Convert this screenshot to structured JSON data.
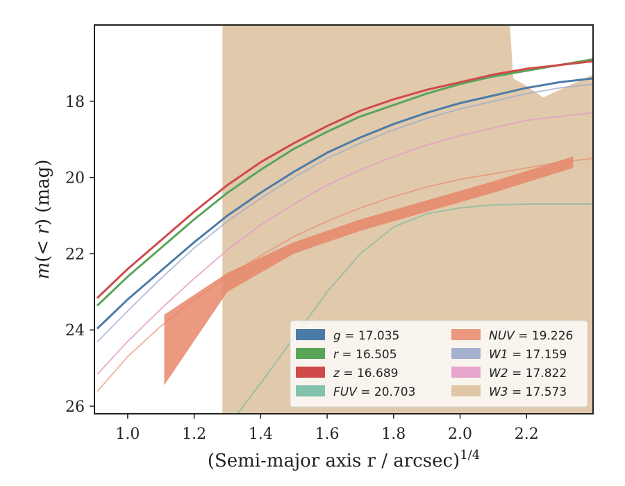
{
  "chart_data": {
    "type": "line",
    "xlabel": "(Semi-major axis r / arcsec)",
    "xlabel_exponent": "1/4",
    "ylabel_m": "m",
    "ylabel_mid": "(< ",
    "ylabel_r": "r",
    "ylabel_end": ") (mag)",
    "xlim": [
      0.9,
      2.4
    ],
    "ylim": [
      26.2,
      16.0
    ],
    "y_inverted": true,
    "xticks": [
      1.0,
      1.2,
      1.4,
      1.6,
      1.8,
      2.0,
      2.2
    ],
    "xtick_labels": [
      "1.0",
      "1.2",
      "1.4",
      "1.6",
      "1.8",
      "2.0",
      "2.2"
    ],
    "yticks": [
      18,
      20,
      22,
      24,
      26
    ],
    "ytick_labels": [
      "18",
      "20",
      "22",
      "24",
      "26"
    ],
    "grid": false,
    "legend_position": "lower-right",
    "legend_columns": 2,
    "series": [
      {
        "name": "g",
        "value": "17.035",
        "color": "#4c7ba8",
        "opacity": 1.0,
        "width": 3,
        "x": [
          0.91,
          1.0,
          1.1,
          1.2,
          1.3,
          1.4,
          1.5,
          1.6,
          1.7,
          1.8,
          1.9,
          2.0,
          2.1,
          2.2,
          2.3,
          2.4
        ],
        "y": [
          23.95,
          23.2,
          22.45,
          21.7,
          21.0,
          20.4,
          19.85,
          19.35,
          18.95,
          18.6,
          18.3,
          18.05,
          17.85,
          17.65,
          17.5,
          17.4
        ]
      },
      {
        "name": "r",
        "value": "16.505",
        "color": "#5aa55a",
        "opacity": 1.0,
        "width": 3,
        "x": [
          0.91,
          1.0,
          1.1,
          1.2,
          1.3,
          1.4,
          1.5,
          1.6,
          1.7,
          1.8,
          1.9,
          2.0,
          2.1,
          2.2,
          2.3,
          2.4
        ],
        "y": [
          23.35,
          22.6,
          21.85,
          21.1,
          20.4,
          19.8,
          19.25,
          18.8,
          18.4,
          18.1,
          17.8,
          17.55,
          17.35,
          17.2,
          17.05,
          16.9
        ]
      },
      {
        "name": "z",
        "value": "16.689",
        "color": "#d04a4a",
        "opacity": 1.0,
        "width": 3,
        "x": [
          0.91,
          1.0,
          1.1,
          1.2,
          1.3,
          1.4,
          1.5,
          1.6,
          1.7,
          1.8,
          1.9,
          2.0,
          2.1,
          2.2,
          2.3,
          2.4
        ],
        "y": [
          23.15,
          22.4,
          21.65,
          20.9,
          20.2,
          19.6,
          19.1,
          18.65,
          18.25,
          17.95,
          17.7,
          17.5,
          17.3,
          17.15,
          17.05,
          16.95
        ]
      },
      {
        "name": "FUV",
        "value": "20.703",
        "color": "#6bb8a0",
        "opacity": 0.6,
        "width": 2,
        "x": [
          1.33,
          1.4,
          1.5,
          1.6,
          1.7,
          1.8,
          1.9,
          2.0,
          2.1,
          2.2,
          2.3,
          2.4
        ],
        "y": [
          26.2,
          25.4,
          24.2,
          23.0,
          22.0,
          21.3,
          20.95,
          20.8,
          20.72,
          20.7,
          20.7,
          20.7
        ]
      },
      {
        "name": "NUV",
        "value": "19.226",
        "color": "#e8876a",
        "opacity": 0.6,
        "width": 2,
        "x": [
          0.91,
          1.0,
          1.1,
          1.2,
          1.3,
          1.4,
          1.5,
          1.6,
          1.7,
          1.8,
          1.9,
          2.0,
          2.1,
          2.2,
          2.3,
          2.4
        ],
        "y": [
          25.6,
          24.7,
          23.9,
          23.2,
          22.6,
          22.05,
          21.55,
          21.15,
          20.8,
          20.5,
          20.25,
          20.05,
          19.9,
          19.75,
          19.6,
          19.5
        ]
      },
      {
        "name": "W1",
        "value": "17.159",
        "color": "#9aaacb",
        "opacity": 0.7,
        "width": 2,
        "x": [
          0.91,
          1.0,
          1.1,
          1.2,
          1.3,
          1.4,
          1.5,
          1.6,
          1.7,
          1.8,
          1.9,
          2.0,
          2.1,
          2.2,
          2.3,
          2.4
        ],
        "y": [
          24.3,
          23.5,
          22.65,
          21.85,
          21.15,
          20.55,
          20.0,
          19.5,
          19.1,
          18.75,
          18.45,
          18.2,
          18.0,
          17.8,
          17.65,
          17.55
        ]
      },
      {
        "name": "W2",
        "value": "17.822",
        "color": "#e39cc8",
        "opacity": 0.8,
        "width": 2,
        "x": [
          0.91,
          1.0,
          1.1,
          1.2,
          1.3,
          1.4,
          1.5,
          1.6,
          1.7,
          1.8,
          1.9,
          2.0,
          2.1,
          2.2,
          2.3,
          2.4
        ],
        "y": [
          25.15,
          24.3,
          23.45,
          22.65,
          21.9,
          21.25,
          20.7,
          20.2,
          19.8,
          19.45,
          19.15,
          18.9,
          18.7,
          18.5,
          18.4,
          18.3
        ]
      }
    ],
    "bands": [
      {
        "name": "W3",
        "value": "17.573",
        "color": "#dcc19e",
        "opacity": 0.85,
        "x": [
          1.285,
          1.285,
          1.29,
          2.15,
          2.15,
          2.16,
          2.2,
          2.25,
          2.3,
          2.35,
          2.4,
          2.4,
          2.3,
          2.2,
          2.17,
          2.16,
          1.29
        ],
        "y": [
          26.2,
          16.0,
          16.0,
          16.0,
          16.0,
          17.4,
          17.6,
          17.9,
          17.7,
          17.5,
          17.3,
          26.2,
          26.2,
          26.2,
          26.2,
          26.2,
          26.2
        ]
      },
      {
        "name": "NUV",
        "value": "19.226",
        "color": "#e8876a",
        "opacity": 0.85,
        "x": [
          1.11,
          1.3,
          1.5,
          1.7,
          1.9,
          2.1,
          2.34,
          2.34,
          2.1,
          1.9,
          1.7,
          1.5,
          1.3,
          1.11
        ],
        "y": [
          23.6,
          22.5,
          21.7,
          21.1,
          20.6,
          20.1,
          19.45,
          19.75,
          20.4,
          20.9,
          21.4,
          22.0,
          23.0,
          25.45
        ]
      }
    ],
    "legend": [
      {
        "label": "g",
        "value": "17.035",
        "italic": true,
        "color": "#4c7ba8",
        "opacity": 1.0
      },
      {
        "label": "r",
        "value": "16.505",
        "italic": true,
        "color": "#5aa55a",
        "opacity": 1.0
      },
      {
        "label": "z",
        "value": "16.689",
        "italic": true,
        "color": "#d04a4a",
        "opacity": 1.0
      },
      {
        "label": "FUV",
        "value": "20.703",
        "italic": true,
        "color": "#6bb8a0",
        "opacity": 0.85
      },
      {
        "label": "NUV",
        "value": "19.226",
        "italic": true,
        "color": "#e8876a",
        "opacity": 0.85
      },
      {
        "label": "W1",
        "value": "17.159",
        "italic": true,
        "color": "#9aaacb",
        "opacity": 0.9
      },
      {
        "label": "W2",
        "value": "17.822",
        "italic": true,
        "color": "#e39cc8",
        "opacity": 0.9
      },
      {
        "label": "W3",
        "value": "17.573",
        "italic": true,
        "color": "#dcc19e",
        "opacity": 0.9
      }
    ]
  }
}
